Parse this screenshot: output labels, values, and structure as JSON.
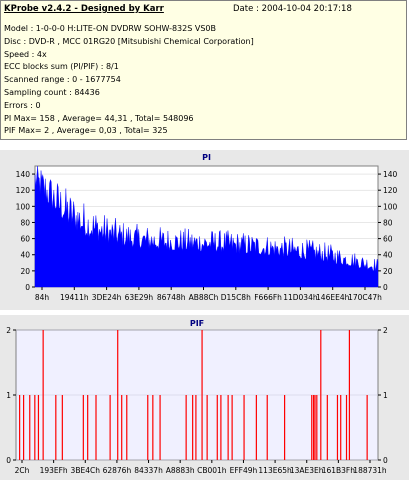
{
  "info": {
    "title": "KProbe v2.4.2 - Designed by Karr",
    "date": "Date : 2004-10-04 20:17:18",
    "lines": [
      "Model : 1-0-0-0 H:LITE-ON DVDRW SOHW-832S  VS0B",
      "Disc : DVD-R , MCC 01RG20   [Mitsubishi Chemical Corporation]",
      "Speed : 4x",
      "ECC blocks sum (PI/PIF) : 8/1",
      "Scanned range : 0 - 1677754",
      "Sampling count : 84436",
      "Errors : 0",
      "PI Max= 158 , Average= 44,31 , Total= 548096",
      "PIF Max= 2 , Average= 0,03 , Total= 325"
    ]
  },
  "colors": {
    "pi": "#0000ff",
    "pif": "#ff0000",
    "plot_bg": "#ffffff",
    "pif_bg": "#f0f0ff"
  },
  "chart_data": [
    {
      "type": "area",
      "title": "PI",
      "ylim": [
        0,
        150
      ],
      "yticks": [
        0,
        20,
        40,
        60,
        80,
        100,
        120,
        140
      ],
      "xticks": [
        "84h",
        "19411h",
        "3DE24h",
        "63E29h",
        "86748h",
        "AB88Ch",
        "D15C8h",
        "F666Fh",
        "11D034h",
        "146EE4h",
        "170C47h"
      ],
      "envelope_max": [
        158,
        140,
        120,
        105,
        92,
        83,
        78,
        76,
        74,
        73,
        72,
        71,
        69,
        67,
        64,
        62,
        59,
        55,
        48,
        42,
        36
      ],
      "envelope_avg": [
        120,
        95,
        75,
        62,
        55,
        51,
        48,
        46,
        45,
        44,
        44,
        43,
        41,
        40,
        38,
        36,
        34,
        31,
        27,
        23,
        19
      ]
    },
    {
      "type": "bar",
      "title": "PIF",
      "ylim": [
        0,
        2
      ],
      "yticks": [
        0,
        1,
        2
      ],
      "xticks": [
        "2Ch",
        "193EFh",
        "3BE4Ch",
        "62876h",
        "84337h",
        "A8883h",
        "CB001h",
        "EFF49h",
        "113E65h",
        "13AE3Eh",
        "161B3Fh",
        "188731h"
      ],
      "spikes": [
        {
          "x": 0.01,
          "v": 1
        },
        {
          "x": 0.021,
          "v": 1
        },
        {
          "x": 0.038,
          "v": 1
        },
        {
          "x": 0.052,
          "v": 1
        },
        {
          "x": 0.062,
          "v": 1
        },
        {
          "x": 0.075,
          "v": 2
        },
        {
          "x": 0.11,
          "v": 1
        },
        {
          "x": 0.128,
          "v": 1
        },
        {
          "x": 0.186,
          "v": 1
        },
        {
          "x": 0.198,
          "v": 1
        },
        {
          "x": 0.221,
          "v": 1
        },
        {
          "x": 0.26,
          "v": 1
        },
        {
          "x": 0.281,
          "v": 2
        },
        {
          "x": 0.292,
          "v": 1
        },
        {
          "x": 0.306,
          "v": 1
        },
        {
          "x": 0.364,
          "v": 1
        },
        {
          "x": 0.378,
          "v": 1
        },
        {
          "x": 0.398,
          "v": 1
        },
        {
          "x": 0.47,
          "v": 1
        },
        {
          "x": 0.488,
          "v": 1
        },
        {
          "x": 0.497,
          "v": 1
        },
        {
          "x": 0.514,
          "v": 2
        },
        {
          "x": 0.528,
          "v": 1
        },
        {
          "x": 0.556,
          "v": 1
        },
        {
          "x": 0.566,
          "v": 1
        },
        {
          "x": 0.586,
          "v": 1
        },
        {
          "x": 0.597,
          "v": 1
        },
        {
          "x": 0.63,
          "v": 1
        },
        {
          "x": 0.664,
          "v": 1
        },
        {
          "x": 0.694,
          "v": 1
        },
        {
          "x": 0.742,
          "v": 1
        },
        {
          "x": 0.817,
          "v": 1
        },
        {
          "x": 0.822,
          "v": 1
        },
        {
          "x": 0.826,
          "v": 1
        },
        {
          "x": 0.831,
          "v": 1
        },
        {
          "x": 0.842,
          "v": 2
        },
        {
          "x": 0.86,
          "v": 1
        },
        {
          "x": 0.888,
          "v": 1
        },
        {
          "x": 0.897,
          "v": 1
        },
        {
          "x": 0.913,
          "v": 1
        },
        {
          "x": 0.921,
          "v": 2
        },
        {
          "x": 0.97,
          "v": 1
        }
      ]
    }
  ]
}
